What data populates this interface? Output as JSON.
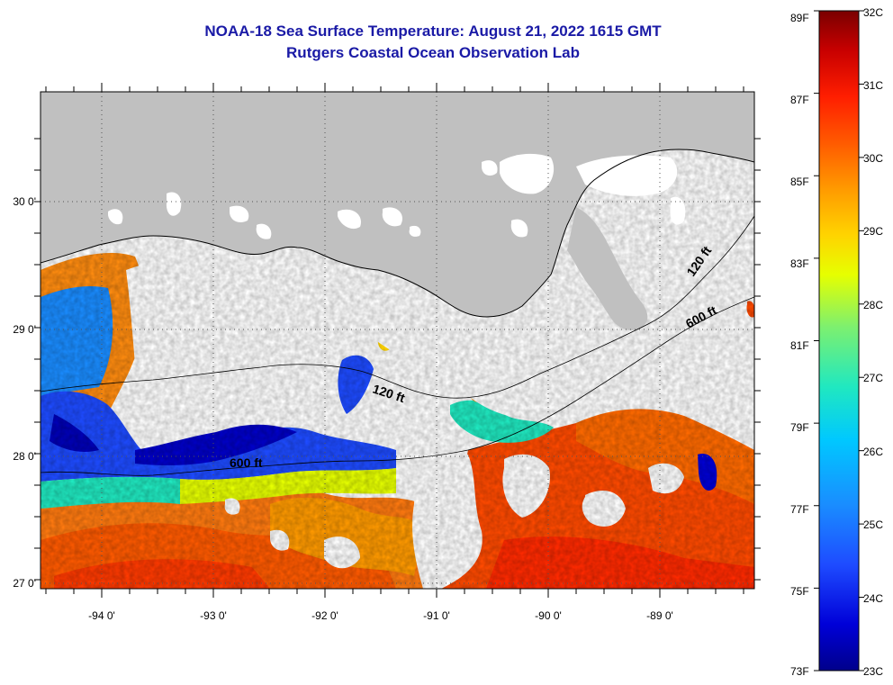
{
  "title": {
    "line1": "NOAA-18 Sea Surface Temperature:  August 21, 2022 1615 GMT",
    "line2": "Rutgers Coastal Ocean Observation Lab"
  },
  "map": {
    "lon_ticks": [
      "-94 0'",
      "-93 0'",
      "-92 0'",
      "-91 0'",
      "-90 0'",
      "-89 0'"
    ],
    "lat_ticks": [
      "30 0'",
      "29 0'",
      "28 0'",
      "27 0'"
    ],
    "contour_labels": [
      "120 ft",
      "600 ft",
      "120 ft",
      "600 ft"
    ],
    "colors": {
      "land": "#c0c0c0",
      "cloud": "#ffffff",
      "grid": "#555555"
    }
  },
  "colorbar": {
    "fahrenheit": [
      "89F",
      "87F",
      "85F",
      "83F",
      "81F",
      "79F",
      "77F",
      "75F",
      "73F"
    ],
    "celsius": [
      "32C",
      "31C",
      "30C",
      "29C",
      "28C",
      "27C",
      "26C",
      "25C",
      "24C",
      "23C"
    ],
    "gradient": [
      "#00008b",
      "#0000d8",
      "#1e4bff",
      "#1a8cff",
      "#00c8ff",
      "#20e8c0",
      "#7cf070",
      "#e6ff00",
      "#ffd400",
      "#ff9a00",
      "#ff5a00",
      "#ff1e00",
      "#c80000",
      "#7a0000"
    ]
  }
}
